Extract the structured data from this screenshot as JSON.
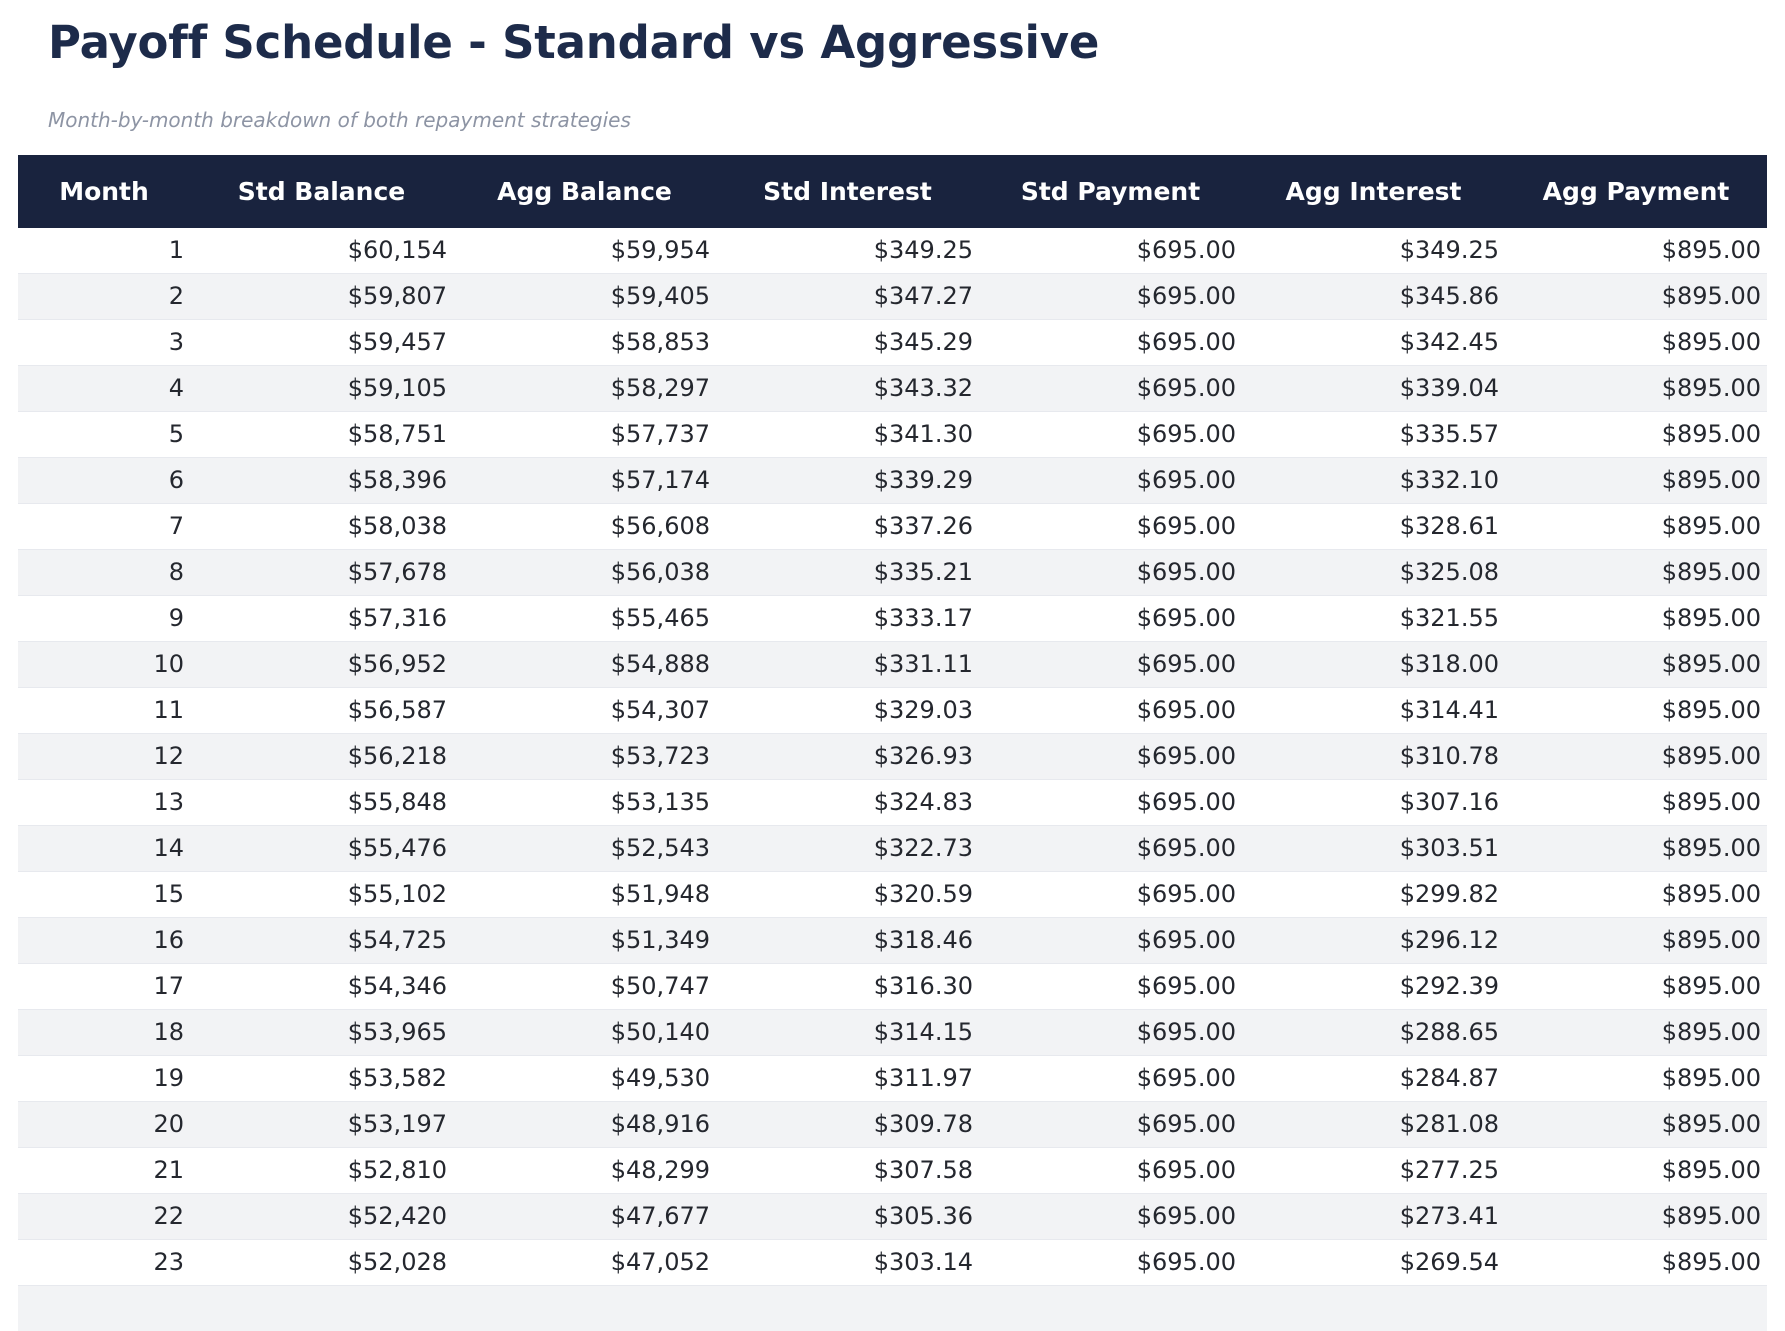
{
  "page": {
    "title": "Payoff Schedule - Standard vs Aggressive",
    "subtitle": "Month-by-month breakdown of both repayment strategies"
  },
  "colors": {
    "header_bg": "#19233e",
    "header_text": "#ffffff",
    "title_text": "#1d2b4a",
    "subtitle_text": "#8d94a4",
    "body_text": "#24272e",
    "row_alt_bg": "#f2f3f5",
    "row_border": "#e7e9ee"
  },
  "table": {
    "columns": [
      "Month",
      "Std Balance",
      "Agg Balance",
      "Std Interest",
      "Std Payment",
      "Agg Interest",
      "Agg Payment"
    ],
    "rows": [
      [
        "1",
        "$60,154",
        "$59,954",
        "$349.25",
        "$695.00",
        "$349.25",
        "$895.00"
      ],
      [
        "2",
        "$59,807",
        "$59,405",
        "$347.27",
        "$695.00",
        "$345.86",
        "$895.00"
      ],
      [
        "3",
        "$59,457",
        "$58,853",
        "$345.29",
        "$695.00",
        "$342.45",
        "$895.00"
      ],
      [
        "4",
        "$59,105",
        "$58,297",
        "$343.32",
        "$695.00",
        "$339.04",
        "$895.00"
      ],
      [
        "5",
        "$58,751",
        "$57,737",
        "$341.30",
        "$695.00",
        "$335.57",
        "$895.00"
      ],
      [
        "6",
        "$58,396",
        "$57,174",
        "$339.29",
        "$695.00",
        "$332.10",
        "$895.00"
      ],
      [
        "7",
        "$58,038",
        "$56,608",
        "$337.26",
        "$695.00",
        "$328.61",
        "$895.00"
      ],
      [
        "8",
        "$57,678",
        "$56,038",
        "$335.21",
        "$695.00",
        "$325.08",
        "$895.00"
      ],
      [
        "9",
        "$57,316",
        "$55,465",
        "$333.17",
        "$695.00",
        "$321.55",
        "$895.00"
      ],
      [
        "10",
        "$56,952",
        "$54,888",
        "$331.11",
        "$695.00",
        "$318.00",
        "$895.00"
      ],
      [
        "11",
        "$56,587",
        "$54,307",
        "$329.03",
        "$695.00",
        "$314.41",
        "$895.00"
      ],
      [
        "12",
        "$56,218",
        "$53,723",
        "$326.93",
        "$695.00",
        "$310.78",
        "$895.00"
      ],
      [
        "13",
        "$55,848",
        "$53,135",
        "$324.83",
        "$695.00",
        "$307.16",
        "$895.00"
      ],
      [
        "14",
        "$55,476",
        "$52,543",
        "$322.73",
        "$695.00",
        "$303.51",
        "$895.00"
      ],
      [
        "15",
        "$55,102",
        "$51,948",
        "$320.59",
        "$695.00",
        "$299.82",
        "$895.00"
      ],
      [
        "16",
        "$54,725",
        "$51,349",
        "$318.46",
        "$695.00",
        "$296.12",
        "$895.00"
      ],
      [
        "17",
        "$54,346",
        "$50,747",
        "$316.30",
        "$695.00",
        "$292.39",
        "$895.00"
      ],
      [
        "18",
        "$53,965",
        "$50,140",
        "$314.15",
        "$695.00",
        "$288.65",
        "$895.00"
      ],
      [
        "19",
        "$53,582",
        "$49,530",
        "$311.97",
        "$695.00",
        "$284.87",
        "$895.00"
      ],
      [
        "20",
        "$53,197",
        "$48,916",
        "$309.78",
        "$695.00",
        "$281.08",
        "$895.00"
      ],
      [
        "21",
        "$52,810",
        "$48,299",
        "$307.58",
        "$695.00",
        "$277.25",
        "$895.00"
      ],
      [
        "22",
        "$52,420",
        "$47,677",
        "$305.36",
        "$695.00",
        "$273.41",
        "$895.00"
      ],
      [
        "23",
        "$52,028",
        "$47,052",
        "$303.14",
        "$695.00",
        "$269.54",
        "$895.00"
      ]
    ],
    "clipped_next_row_visible": true
  },
  "chart_data": {
    "type": "table",
    "title": "Payoff Schedule - Standard vs Aggressive",
    "subtitle": "Month-by-month breakdown of both repayment strategies",
    "columns": [
      "Month",
      "Std Balance",
      "Agg Balance",
      "Std Interest",
      "Std Payment",
      "Agg Interest",
      "Agg Payment"
    ],
    "rows": [
      [
        1,
        "$60,154",
        "$59,954",
        "$349.25",
        "$695.00",
        "$349.25",
        "$895.00"
      ],
      [
        2,
        "$59,807",
        "$59,405",
        "$347.27",
        "$695.00",
        "$345.86",
        "$895.00"
      ],
      [
        3,
        "$59,457",
        "$58,853",
        "$345.29",
        "$695.00",
        "$342.45",
        "$895.00"
      ],
      [
        4,
        "$59,105",
        "$58,297",
        "$343.32",
        "$695.00",
        "$339.04",
        "$895.00"
      ],
      [
        5,
        "$58,751",
        "$57,737",
        "$341.30",
        "$695.00",
        "$335.57",
        "$895.00"
      ],
      [
        6,
        "$58,396",
        "$57,174",
        "$339.29",
        "$695.00",
        "$332.10",
        "$895.00"
      ],
      [
        7,
        "$58,038",
        "$56,608",
        "$337.26",
        "$695.00",
        "$328.61",
        "$895.00"
      ],
      [
        8,
        "$57,678",
        "$56,038",
        "$335.21",
        "$695.00",
        "$325.08",
        "$895.00"
      ],
      [
        9,
        "$57,316",
        "$55,465",
        "$333.17",
        "$695.00",
        "$321.55",
        "$895.00"
      ],
      [
        10,
        "$56,952",
        "$54,888",
        "$331.11",
        "$695.00",
        "$318.00",
        "$895.00"
      ],
      [
        11,
        "$56,587",
        "$54,307",
        "$329.03",
        "$695.00",
        "$314.41",
        "$895.00"
      ],
      [
        12,
        "$56,218",
        "$53,723",
        "$326.93",
        "$695.00",
        "$310.78",
        "$895.00"
      ],
      [
        13,
        "$55,848",
        "$53,135",
        "$324.83",
        "$695.00",
        "$307.16",
        "$895.00"
      ],
      [
        14,
        "$55,476",
        "$52,543",
        "$322.73",
        "$695.00",
        "$303.51",
        "$895.00"
      ],
      [
        15,
        "$55,102",
        "$51,948",
        "$320.59",
        "$695.00",
        "$299.82",
        "$895.00"
      ],
      [
        16,
        "$54,725",
        "$51,349",
        "$318.46",
        "$695.00",
        "$296.12",
        "$895.00"
      ],
      [
        17,
        "$54,346",
        "$50,747",
        "$316.30",
        "$695.00",
        "$292.39",
        "$895.00"
      ],
      [
        18,
        "$53,965",
        "$50,140",
        "$314.15",
        "$695.00",
        "$288.65",
        "$895.00"
      ],
      [
        19,
        "$53,582",
        "$49,530",
        "$311.97",
        "$695.00",
        "$284.87",
        "$895.00"
      ],
      [
        20,
        "$53,197",
        "$48,916",
        "$309.78",
        "$695.00",
        "$281.08",
        "$895.00"
      ],
      [
        21,
        "$52,810",
        "$48,299",
        "$307.58",
        "$695.00",
        "$277.25",
        "$895.00"
      ],
      [
        22,
        "$52,420",
        "$47,677",
        "$305.36",
        "$695.00",
        "$273.41",
        "$895.00"
      ],
      [
        23,
        "$52,028",
        "$47,052",
        "$303.14",
        "$695.00",
        "$269.54",
        "$895.00"
      ]
    ]
  }
}
